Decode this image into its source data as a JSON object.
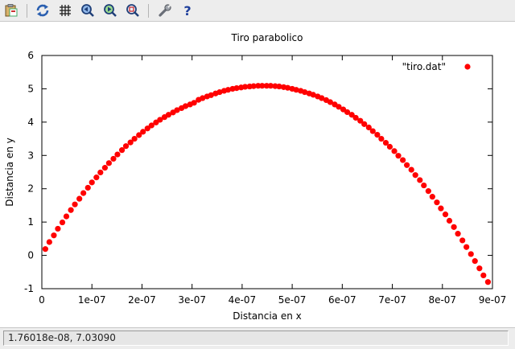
{
  "window": {
    "status_text": "1.76018e-08,  7.03090"
  },
  "toolbar": {
    "buttons": [
      {
        "name": "copy-clipboard-icon"
      },
      {
        "name": "replot-icon"
      },
      {
        "name": "grid-icon"
      },
      {
        "name": "zoom-previous-icon"
      },
      {
        "name": "zoom-next-icon"
      },
      {
        "name": "autoscale-icon"
      },
      {
        "name": "options-icon"
      },
      {
        "name": "help-icon"
      }
    ]
  },
  "colors": {
    "series": "#ff0000",
    "axis": "#000000"
  },
  "chart_data": {
    "type": "scatter",
    "title": "Tiro parabolico",
    "xlabel": "Distancia en x",
    "ylabel": "Distancia en y",
    "xlim": [
      0,
      9e-07
    ],
    "ylim": [
      -1,
      6
    ],
    "xticks": [
      0,
      1e-07,
      2e-07,
      3e-07,
      4e-07,
      5e-07,
      6e-07,
      7e-07,
      8e-07,
      9e-07
    ],
    "xtick_labels": [
      "0",
      "1e-07",
      "2e-07",
      "3e-07",
      "4e-07",
      "5e-07",
      "6e-07",
      "7e-07",
      "8e-07",
      "9e-07"
    ],
    "yticks": [
      -1,
      0,
      1,
      2,
      3,
      4,
      5,
      6
    ],
    "ytick_labels": [
      "-1",
      "0",
      "1",
      "2",
      "3",
      "4",
      "5",
      "6"
    ],
    "grid": false,
    "legend": "top-right",
    "series": [
      {
        "name": "\"tiro.dat\"",
        "x": [
          7e-09,
          1.5e-08,
          2.4e-08,
          3.2e-08,
          4.1e-08,
          4.9e-08,
          5.8e-08,
          6.6e-08,
          7.5e-08,
          8.3e-08,
          9.2e-08,
          1e-07,
          1.09e-07,
          1.17e-07,
          1.26e-07,
          1.34e-07,
          1.43e-07,
          1.51e-07,
          1.6e-07,
          1.68e-07,
          1.77e-07,
          1.85e-07,
          1.94e-07,
          2.02e-07,
          2.11e-07,
          2.19e-07,
          2.28e-07,
          2.36e-07,
          2.45e-07,
          2.53e-07,
          2.62e-07,
          2.7e-07,
          2.79e-07,
          2.87e-07,
          2.96e-07,
          3.04e-07,
          3.13e-07,
          3.21e-07,
          3.3e-07,
          3.38e-07,
          3.47e-07,
          3.55e-07,
          3.64e-07,
          3.72e-07,
          3.81e-07,
          3.89e-07,
          3.98e-07,
          4.06e-07,
          4.15e-07,
          4.23e-07,
          4.32e-07,
          4.4e-07,
          4.49e-07,
          4.57e-07,
          4.66e-07,
          4.74e-07,
          4.83e-07,
          4.91e-07,
          5e-07,
          5.08e-07,
          5.17e-07,
          5.25e-07,
          5.34e-07,
          5.42e-07,
          5.51e-07,
          5.59e-07,
          5.68e-07,
          5.76e-07,
          5.85e-07,
          5.93e-07,
          6.02e-07,
          6.1e-07,
          6.19e-07,
          6.27e-07,
          6.36e-07,
          6.44e-07,
          6.53e-07,
          6.61e-07,
          6.7e-07,
          6.78e-07,
          6.87e-07,
          6.95e-07,
          7.04e-07,
          7.12e-07,
          7.21e-07,
          7.29e-07,
          7.38e-07,
          7.46e-07,
          7.55e-07,
          7.63e-07,
          7.72e-07,
          7.8e-07,
          7.89e-07,
          7.97e-07,
          8.06e-07,
          8.14e-07,
          8.23e-07,
          8.31e-07,
          8.4e-07,
          8.48e-07,
          8.57e-07,
          8.65e-07,
          8.74e-07,
          8.82e-07,
          8.91e-07
        ],
        "y": [
          0.19,
          0.4,
          0.6,
          0.8,
          0.99,
          1.17,
          1.36,
          1.53,
          1.7,
          1.87,
          2.03,
          2.19,
          2.34,
          2.49,
          2.63,
          2.77,
          2.9,
          3.03,
          3.16,
          3.28,
          3.39,
          3.5,
          3.61,
          3.71,
          3.81,
          3.9,
          3.99,
          4.07,
          4.15,
          4.22,
          4.29,
          4.36,
          4.42,
          4.48,
          4.53,
          4.58,
          4.67,
          4.72,
          4.77,
          4.81,
          4.86,
          4.9,
          4.94,
          4.97,
          5.0,
          5.02,
          5.04,
          5.06,
          5.07,
          5.08,
          5.09,
          5.09,
          5.09,
          5.09,
          5.08,
          5.07,
          5.05,
          5.03,
          5.0,
          4.97,
          4.94,
          4.9,
          4.86,
          4.82,
          4.77,
          4.72,
          4.66,
          4.6,
          4.53,
          4.46,
          4.38,
          4.3,
          4.22,
          4.13,
          4.04,
          3.94,
          3.84,
          3.73,
          3.62,
          3.5,
          3.38,
          3.26,
          3.13,
          2.99,
          2.86,
          2.71,
          2.57,
          2.41,
          2.26,
          2.1,
          1.93,
          1.76,
          1.59,
          1.41,
          1.23,
          1.04,
          0.85,
          0.65,
          0.45,
          0.25,
          0.04,
          -0.17,
          -0.39,
          -0.6,
          -0.8
        ]
      }
    ]
  }
}
